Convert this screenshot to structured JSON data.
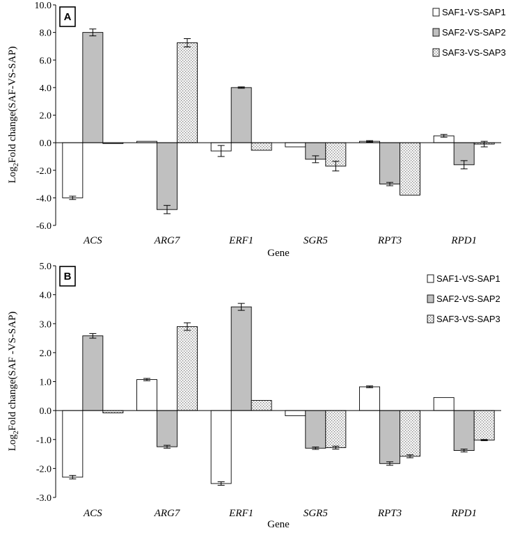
{
  "colors": {
    "series1": "#ffffff",
    "series2": "#c0c0c0",
    "series3": "dotted-light-gray",
    "stroke": "#000000"
  },
  "chart_data": [
    {
      "panel": "A",
      "type": "bar",
      "xlabel": "Gene",
      "ylabel": "Log2Fold change(SAF-VS-SAP)",
      "ylabel_parts": {
        "pre": "Log",
        "sub": "2",
        "post": "Fold change(SAF-VS-SAP)"
      },
      "ylim": [
        -6.0,
        10.0
      ],
      "yticks": [
        10.0,
        8.0,
        6.0,
        4.0,
        2.0,
        0.0,
        -2.0,
        -4.0,
        -6.0
      ],
      "ytick_labels": [
        "10.0",
        "8.0",
        "6.0",
        "4.0",
        "2.0",
        "0.0",
        "-2.0",
        "-4.0",
        "-6.0"
      ],
      "legend_position": "top-right",
      "categories": [
        "ACS",
        "ARG7",
        "ERF1",
        "SGR5",
        "RPT3",
        "RPD1"
      ],
      "series": [
        {
          "name": "SAF1-VS-SAP1",
          "values": [
            -4.0,
            0.1,
            -0.6,
            -0.3,
            0.1,
            0.5
          ],
          "errors": [
            0.12,
            0.0,
            0.4,
            0.0,
            0.05,
            0.1
          ]
        },
        {
          "name": "SAF2-VS-SAP2",
          "values": [
            8.0,
            -4.85,
            4.0,
            -1.2,
            -3.0,
            -1.6
          ],
          "errors": [
            0.25,
            0.3,
            0.05,
            0.25,
            0.12,
            0.3
          ]
        },
        {
          "name": "SAF3-VS-SAP3",
          "values": [
            -0.05,
            7.25,
            -0.55,
            -1.7,
            -3.8,
            -0.1
          ],
          "errors": [
            0.0,
            0.3,
            0.0,
            0.35,
            0.0,
            0.2
          ]
        }
      ]
    },
    {
      "panel": "B",
      "type": "bar",
      "xlabel": "Gene",
      "ylabel": "Log2Fold change(SAF -VS-SAP)",
      "ylabel_parts": {
        "pre": "Log",
        "sub": "2",
        "post": "Fold change(SAF -VS-SAP)"
      },
      "ylim": [
        -3.0,
        5.0
      ],
      "yticks": [
        5.0,
        4.0,
        3.0,
        2.0,
        1.0,
        0.0,
        -1.0,
        -2.0,
        -3.0
      ],
      "ytick_labels": [
        "5.0",
        "4.0",
        "3.0",
        "2.0",
        "1.0",
        "0.0",
        "-1.0",
        "-2.0",
        "-3.0"
      ],
      "legend_position": "top-right",
      "categories": [
        "ACS",
        "ARG7",
        "ERF1",
        "SGR5",
        "RPT3",
        "RPD1"
      ],
      "series": [
        {
          "name": "SAF1-VS-SAP1",
          "values": [
            -2.3,
            1.07,
            -2.52,
            -0.18,
            0.82,
            0.45
          ],
          "errors": [
            0.06,
            0.04,
            0.06,
            0.0,
            0.03,
            0.0
          ]
        },
        {
          "name": "SAF2-VS-SAP2",
          "values": [
            2.58,
            -1.25,
            3.58,
            -1.3,
            -1.83,
            -1.38
          ],
          "errors": [
            0.08,
            0.05,
            0.12,
            0.04,
            0.06,
            0.05
          ]
        },
        {
          "name": "SAF3-VS-SAP3",
          "values": [
            -0.08,
            2.9,
            0.35,
            -1.28,
            -1.58,
            -1.02
          ],
          "errors": [
            0.0,
            0.13,
            0.0,
            0.05,
            0.05,
            0.02
          ]
        }
      ]
    }
  ]
}
